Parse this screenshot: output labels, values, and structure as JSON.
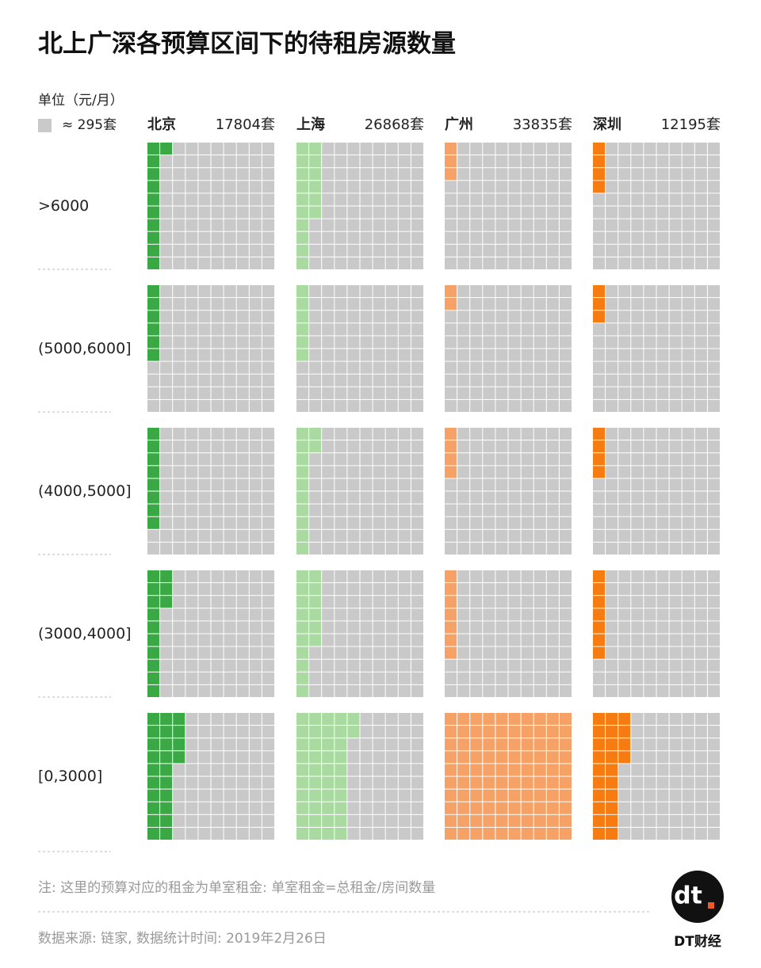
{
  "chart_data": {
    "type": "waffle",
    "title": "北上广深各预算区间下的待租房源数量",
    "unit_label": "单位（元/月）",
    "legend_label": "≈ 295套",
    "categories": [
      ">6000",
      "(5000,6000]",
      "(4000,5000]",
      "(3000,4000]",
      "[0,3000]"
    ],
    "series": [
      {
        "name": "北京",
        "total_label": "17804套",
        "color": "#3aa845",
        "values": [
          11,
          6,
          8,
          13,
          24
        ]
      },
      {
        "name": "上海",
        "total_label": "26868套",
        "color": "#a9dba1",
        "values": [
          16,
          6,
          12,
          16,
          42
        ]
      },
      {
        "name": "广州",
        "total_label": "33835套",
        "color": "#f6a266",
        "values": [
          3,
          2,
          4,
          7,
          100
        ]
      },
      {
        "name": "深圳",
        "total_label": "12195套",
        "color": "#f67c12",
        "values": [
          4,
          3,
          4,
          7,
          24
        ]
      }
    ],
    "empty_color": "#c9c9c9",
    "note": "注: 这里的预算对应的租金为单室租金: 单室租金=总租金/房间数量",
    "source": "数据来源: 链家, 数据统计时间: 2019年2月26日",
    "logo_text": "DT财经"
  }
}
